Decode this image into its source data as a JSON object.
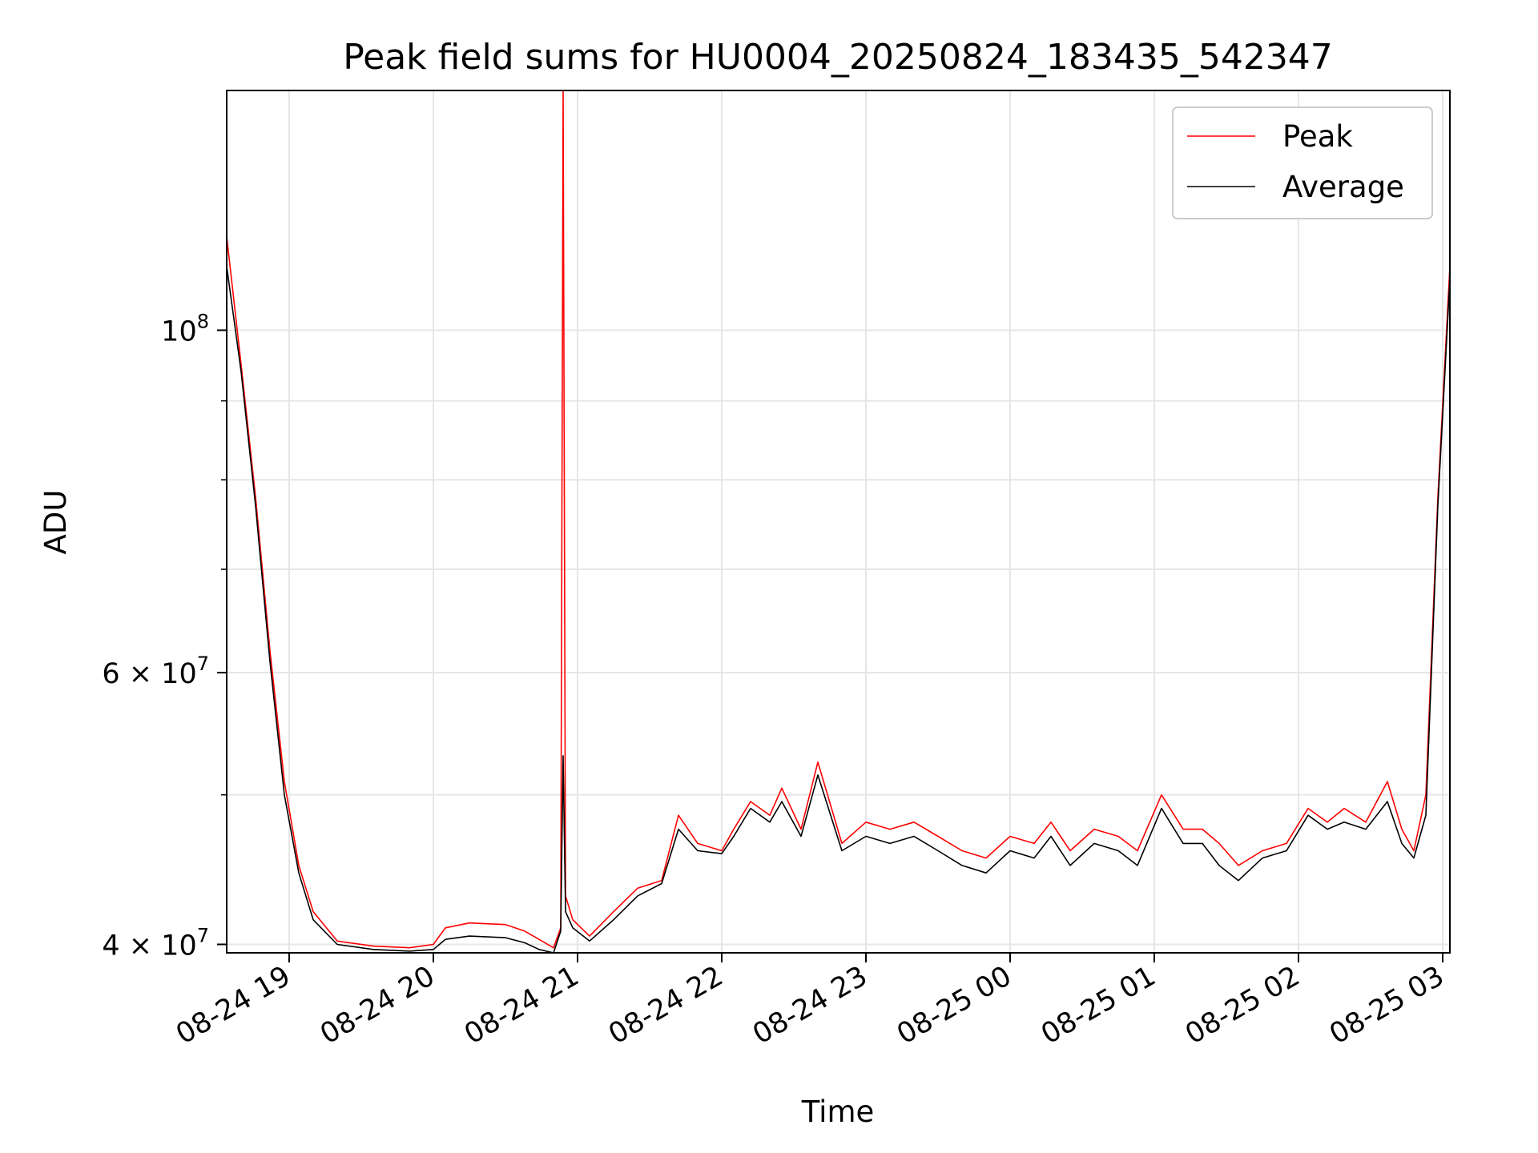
{
  "chart_data": {
    "type": "line",
    "title": "Peak field sums for HU0004_20250824_183435_542347",
    "xlabel": "Time",
    "ylabel": "ADU",
    "y_scale": "log",
    "ylim": [
      39500000,
      143000000
    ],
    "xlim": [
      "2025-08-24 18:34",
      "2025-08-25 03:03"
    ],
    "grid": true,
    "legend_position": "top-right",
    "x_ticks": [
      {
        "t": "2025-08-24 19:00",
        "label": "08-24 19"
      },
      {
        "t": "2025-08-24 20:00",
        "label": "08-24 20"
      },
      {
        "t": "2025-08-24 21:00",
        "label": "08-24 21"
      },
      {
        "t": "2025-08-24 22:00",
        "label": "08-24 22"
      },
      {
        "t": "2025-08-24 23:00",
        "label": "08-24 23"
      },
      {
        "t": "2025-08-25 00:00",
        "label": "08-25 00"
      },
      {
        "t": "2025-08-25 01:00",
        "label": "08-25 01"
      },
      {
        "t": "2025-08-25 02:00",
        "label": "08-25 02"
      },
      {
        "t": "2025-08-25 03:00",
        "label": "08-25 03"
      }
    ],
    "y_ticks": [
      {
        "value": 40000000,
        "base": "4 × 10",
        "exp": "7"
      },
      {
        "value": 60000000,
        "base": "6 × 10",
        "exp": "7"
      },
      {
        "value": 100000000,
        "base": "10",
        "exp": "8"
      }
    ],
    "y_minor_ticks": [
      50000000,
      70000000,
      80000000,
      90000000
    ],
    "series": [
      {
        "name": "Peak",
        "color": "#ff0000",
        "x": [
          "2025-08-24 18:34",
          "2025-08-24 18:40",
          "2025-08-24 18:46",
          "2025-08-24 18:52",
          "2025-08-24 18:58",
          "2025-08-24 19:04",
          "2025-08-24 19:10",
          "2025-08-24 19:20",
          "2025-08-24 19:35",
          "2025-08-24 19:50",
          "2025-08-24 20:00",
          "2025-08-24 20:05",
          "2025-08-24 20:15",
          "2025-08-24 20:30",
          "2025-08-24 20:38",
          "2025-08-24 20:44",
          "2025-08-24 20:50",
          "2025-08-24 20:53",
          "2025-08-24 20:54",
          "2025-08-24 20:55",
          "2025-08-24 20:58",
          "2025-08-24 21:05",
          "2025-08-24 21:15",
          "2025-08-24 21:25",
          "2025-08-24 21:35",
          "2025-08-24 21:42",
          "2025-08-24 21:50",
          "2025-08-24 22:00",
          "2025-08-24 22:05",
          "2025-08-24 22:12",
          "2025-08-24 22:20",
          "2025-08-24 22:25",
          "2025-08-24 22:33",
          "2025-08-24 22:40",
          "2025-08-24 22:50",
          "2025-08-24 23:00",
          "2025-08-24 23:10",
          "2025-08-24 23:20",
          "2025-08-24 23:30",
          "2025-08-24 23:40",
          "2025-08-24 23:50",
          "2025-08-25 00:00",
          "2025-08-25 00:10",
          "2025-08-25 00:17",
          "2025-08-25 00:25",
          "2025-08-25 00:35",
          "2025-08-25 00:45",
          "2025-08-25 00:53",
          "2025-08-25 01:03",
          "2025-08-25 01:12",
          "2025-08-25 01:20",
          "2025-08-25 01:27",
          "2025-08-25 01:35",
          "2025-08-25 01:45",
          "2025-08-25 01:55",
          "2025-08-25 02:04",
          "2025-08-25 02:12",
          "2025-08-25 02:19",
          "2025-08-25 02:28",
          "2025-08-25 02:37",
          "2025-08-25 02:43",
          "2025-08-25 02:48",
          "2025-08-25 02:53",
          "2025-08-25 02:58",
          "2025-08-25 03:03"
        ],
        "y": [
          115000000,
          95000000,
          78000000,
          62000000,
          51000000,
          45000000,
          42000000,
          40200000,
          39900000,
          39800000,
          40000000,
          41000000,
          41300000,
          41200000,
          40800000,
          40300000,
          39800000,
          41000000,
          143000000,
          43000000,
          41500000,
          40500000,
          42000000,
          43500000,
          44000000,
          48500000,
          46500000,
          46000000,
          47500000,
          49500000,
          48500000,
          50500000,
          47500000,
          52500000,
          46500000,
          48000000,
          47500000,
          48000000,
          47000000,
          46000000,
          45500000,
          47000000,
          46500000,
          48000000,
          46000000,
          47500000,
          47000000,
          46000000,
          50000000,
          47500000,
          47500000,
          46500000,
          45000000,
          46000000,
          46500000,
          49000000,
          48000000,
          49000000,
          48000000,
          51000000,
          47500000,
          46000000,
          50000000,
          78000000,
          110000000
        ]
      },
      {
        "name": "Average",
        "color": "#000000",
        "x": [
          "2025-08-24 18:34",
          "2025-08-24 18:40",
          "2025-08-24 18:46",
          "2025-08-24 18:52",
          "2025-08-24 18:58",
          "2025-08-24 19:04",
          "2025-08-24 19:10",
          "2025-08-24 19:20",
          "2025-08-24 19:35",
          "2025-08-24 19:50",
          "2025-08-24 20:00",
          "2025-08-24 20:05",
          "2025-08-24 20:15",
          "2025-08-24 20:30",
          "2025-08-24 20:38",
          "2025-08-24 20:44",
          "2025-08-24 20:50",
          "2025-08-24 20:53",
          "2025-08-24 20:54",
          "2025-08-24 20:55",
          "2025-08-24 20:58",
          "2025-08-24 21:05",
          "2025-08-24 21:15",
          "2025-08-24 21:25",
          "2025-08-24 21:35",
          "2025-08-24 21:42",
          "2025-08-24 21:50",
          "2025-08-24 22:00",
          "2025-08-24 22:05",
          "2025-08-24 22:12",
          "2025-08-24 22:20",
          "2025-08-24 22:25",
          "2025-08-24 22:33",
          "2025-08-24 22:40",
          "2025-08-24 22:50",
          "2025-08-24 23:00",
          "2025-08-24 23:10",
          "2025-08-24 23:20",
          "2025-08-24 23:30",
          "2025-08-24 23:40",
          "2025-08-24 23:50",
          "2025-08-25 00:00",
          "2025-08-25 00:10",
          "2025-08-25 00:17",
          "2025-08-25 00:25",
          "2025-08-25 00:35",
          "2025-08-25 00:45",
          "2025-08-25 00:53",
          "2025-08-25 01:03",
          "2025-08-25 01:12",
          "2025-08-25 01:20",
          "2025-08-25 01:27",
          "2025-08-25 01:35",
          "2025-08-25 01:45",
          "2025-08-25 01:55",
          "2025-08-25 02:04",
          "2025-08-25 02:12",
          "2025-08-25 02:19",
          "2025-08-25 02:28",
          "2025-08-25 02:37",
          "2025-08-25 02:43",
          "2025-08-25 02:48",
          "2025-08-25 02:53",
          "2025-08-25 02:58",
          "2025-08-25 03:03"
        ],
        "y": [
          110000000,
          94000000,
          77000000,
          61000000,
          50000000,
          44500000,
          41500000,
          40000000,
          39700000,
          39600000,
          39700000,
          40300000,
          40500000,
          40400000,
          40100000,
          39700000,
          39500000,
          40800000,
          53000000,
          42000000,
          41000000,
          40200000,
          41500000,
          43000000,
          43800000,
          47500000,
          46000000,
          45800000,
          47000000,
          49000000,
          48000000,
          49500000,
          47000000,
          51500000,
          46000000,
          47000000,
          46500000,
          47000000,
          46000000,
          45000000,
          44500000,
          46000000,
          45500000,
          47000000,
          45000000,
          46500000,
          46000000,
          45000000,
          49000000,
          46500000,
          46500000,
          45000000,
          44000000,
          45500000,
          46000000,
          48500000,
          47500000,
          48000000,
          47500000,
          49500000,
          46500000,
          45500000,
          48500000,
          77000000,
          108000000
        ]
      }
    ]
  },
  "legend": {
    "items": [
      {
        "label": "Peak",
        "color": "#ff0000"
      },
      {
        "label": "Average",
        "color": "#000000"
      }
    ]
  }
}
